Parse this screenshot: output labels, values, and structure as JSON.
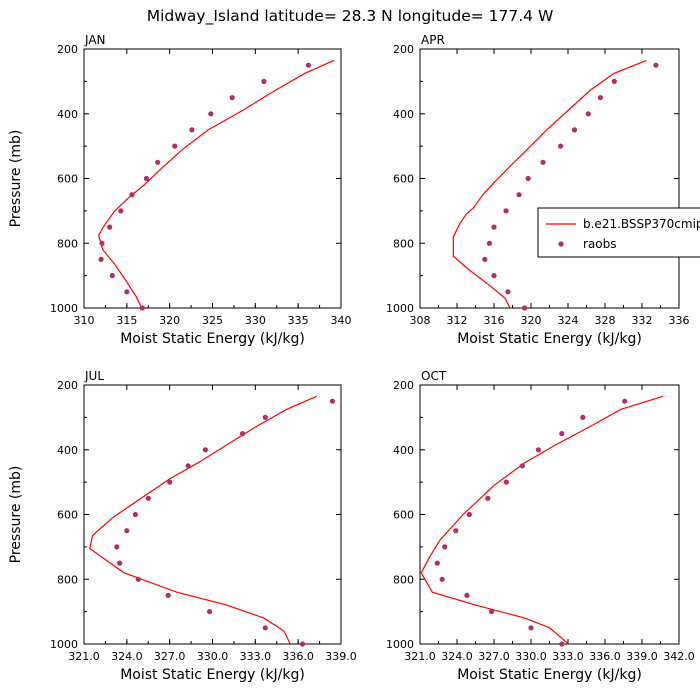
{
  "figure_title": "Midway_Island  latitude= 28.3 N longitude= 177.4 W",
  "colors": {
    "model": "#ff0000",
    "obs": "#b03060",
    "axis": "#000000"
  },
  "legend": {
    "model_label": "b.e21.BSSP370cmip",
    "obs_label": "raobs"
  },
  "chart_data": [
    {
      "type": "line",
      "panel_label": "JAN",
      "xlabel": "Moist Static Energy (kJ/kg)",
      "ylabel": "Pressure (mb)",
      "xlim": [
        310,
        340
      ],
      "ylim": [
        1000,
        200
      ],
      "xticks": [
        "310",
        "315",
        "320",
        "325",
        "330",
        "335",
        "340"
      ],
      "yticks": [
        "200",
        "400",
        "600",
        "800",
        "1000"
      ],
      "series": [
        {
          "kind": "line",
          "x": [
            339.2,
            335.8,
            332.5,
            328.5,
            324.5,
            321.5,
            319.0,
            317.0,
            315.2,
            313.6,
            312.5,
            311.7,
            312.2,
            313.6,
            315.0,
            316.1,
            316.8
          ],
          "y": [
            235,
            275,
            325,
            390,
            450,
            510,
            570,
            620,
            660,
            700,
            740,
            775,
            820,
            865,
            920,
            965,
            1005
          ]
        },
        {
          "kind": "scatter",
          "x": [
            336.2,
            331.0,
            327.3,
            324.8,
            322.6,
            320.6,
            318.6,
            317.3,
            315.6,
            314.3,
            313.0,
            312.1,
            312.0,
            313.3,
            315.0,
            316.8
          ],
          "y": [
            250,
            300,
            350,
            400,
            450,
            500,
            550,
            600,
            650,
            700,
            750,
            800,
            850,
            900,
            950,
            1000
          ]
        }
      ]
    },
    {
      "type": "line",
      "panel_label": "APR",
      "xlabel": "Moist Static Energy (kJ/kg)",
      "ylabel": "",
      "xlim": [
        308,
        336
      ],
      "ylim": [
        1000,
        200
      ],
      "xticks": [
        "308",
        "312",
        "316",
        "320",
        "324",
        "328",
        "332",
        "336"
      ],
      "yticks": [
        "200",
        "400",
        "600",
        "800",
        "1000"
      ],
      "series": [
        {
          "kind": "line",
          "x": [
            332.5,
            329.0,
            326.5,
            324.0,
            321.7,
            319.6,
            317.8,
            316.1,
            314.8,
            313.8,
            313.0,
            312.3,
            311.6,
            311.6,
            313.2,
            315.5,
            317.2,
            317.8
          ],
          "y": [
            235,
            275,
            325,
            390,
            450,
            510,
            560,
            610,
            650,
            690,
            710,
            740,
            780,
            840,
            880,
            930,
            970,
            1005
          ]
        },
        {
          "kind": "scatter",
          "x": [
            333.5,
            329.0,
            327.5,
            326.2,
            324.7,
            323.2,
            321.3,
            319.7,
            318.7,
            317.3,
            316.0,
            315.5,
            315.0,
            316.0,
            317.5,
            319.3
          ],
          "y": [
            250,
            300,
            350,
            400,
            450,
            500,
            550,
            600,
            650,
            700,
            750,
            800,
            850,
            900,
            950,
            1000
          ]
        }
      ]
    },
    {
      "type": "line",
      "panel_label": "JUL",
      "xlabel": "Moist Static Energy (kJ/kg)",
      "ylabel": "Pressure (mb)",
      "xlim": [
        321,
        339
      ],
      "ylim": [
        1000,
        200
      ],
      "xticks": [
        "321.0",
        "324.0",
        "327.0",
        "330.0",
        "333.0",
        "336.0",
        "339.0"
      ],
      "yticks": [
        "200",
        "400",
        "600",
        "800",
        "1000"
      ],
      "series": [
        {
          "kind": "line",
          "x": [
            337.3,
            335.2,
            333.0,
            331.0,
            329.0,
            327.0,
            325.0,
            323.0,
            321.6,
            321.4,
            323.8,
            327.5,
            331.0,
            333.6,
            335.0,
            335.5
          ],
          "y": [
            235,
            275,
            330,
            385,
            440,
            490,
            550,
            610,
            665,
            705,
            780,
            840,
            880,
            920,
            960,
            1005
          ]
        },
        {
          "kind": "scatter",
          "x": [
            338.4,
            333.7,
            332.1,
            329.5,
            328.3,
            327.0,
            325.5,
            324.6,
            324.0,
            323.3,
            323.5,
            324.8,
            326.9,
            329.8,
            333.7,
            336.3
          ],
          "y": [
            250,
            300,
            350,
            400,
            450,
            500,
            550,
            600,
            650,
            700,
            750,
            800,
            850,
            900,
            950,
            1000
          ]
        }
      ]
    },
    {
      "type": "line",
      "panel_label": "OCT",
      "xlabel": "Moist Static Energy (kJ/kg)",
      "ylabel": "",
      "xlim": [
        321,
        342
      ],
      "ylim": [
        1000,
        200
      ],
      "xticks": [
        "321.0",
        "324.0",
        "327.0",
        "330.0",
        "333.0",
        "336.0",
        "339.0",
        "342.0"
      ],
      "yticks": [
        "200",
        "400",
        "600",
        "800",
        "1000"
      ],
      "series": [
        {
          "kind": "line",
          "x": [
            340.7,
            337.3,
            334.7,
            332.0,
            329.5,
            327.0,
            324.5,
            322.6,
            321.8,
            321.1,
            322.0,
            325.5,
            329.5,
            331.5,
            333.2
          ],
          "y": [
            235,
            275,
            330,
            385,
            440,
            510,
            600,
            680,
            730,
            780,
            840,
            880,
            920,
            950,
            1005
          ]
        },
        {
          "kind": "scatter",
          "x": [
            337.6,
            334.2,
            332.5,
            330.6,
            329.3,
            328.0,
            326.5,
            325.0,
            323.9,
            323.0,
            322.4,
            322.8,
            324.8,
            326.8,
            330.0,
            332.5
          ],
          "y": [
            250,
            300,
            350,
            400,
            450,
            500,
            550,
            600,
            650,
            700,
            750,
            800,
            850,
            900,
            950,
            1000
          ]
        }
      ]
    }
  ]
}
